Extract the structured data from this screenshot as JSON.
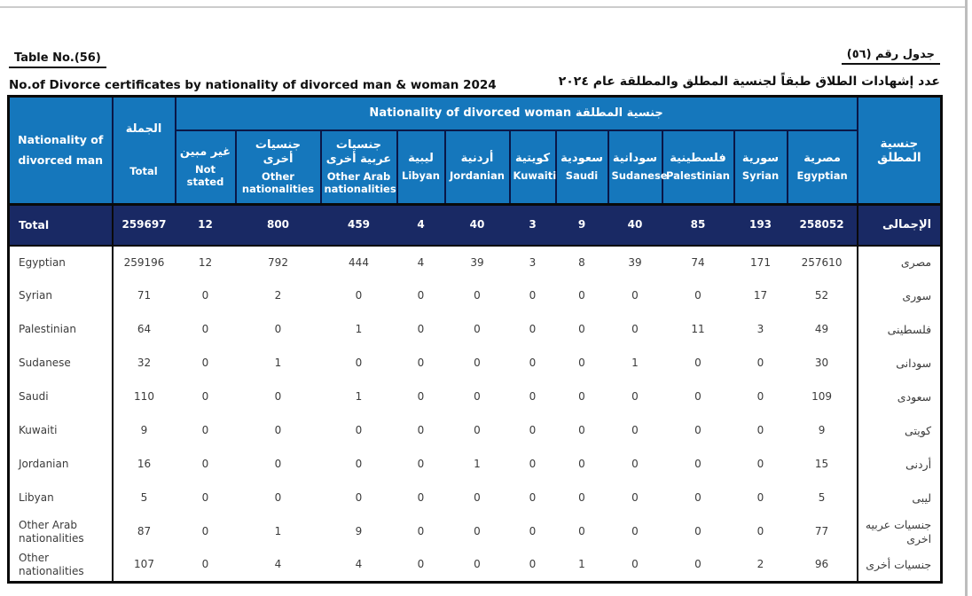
{
  "page": {
    "table_no_en": "Table  No.(56)",
    "table_no_ar": "جدول رقم (٥٦)",
    "title_en": "No.of  Divorce certificates by nationality of divorced man & woman 2024",
    "title_ar": "عدد إشهادات الطلاق طبقاً لجنسية المطلق والمطلقة عام  ٢٠٢٤"
  },
  "colors": {
    "header_blue": "#1577BC",
    "total_navy": "#192964",
    "border_black": "#0a0a0a",
    "body_text": "#3b3b3b"
  },
  "table": {
    "man_header_en": "Nationality of divorced man",
    "total_header_ar": "الجملة",
    "total_header_en": "Total",
    "woman_group_header": "Nationality of divorced  woman جنسية المطلقة",
    "man_header_ar": "جنسية المطلق",
    "columns": [
      {
        "ar": "غير مبين",
        "en": "Not stated"
      },
      {
        "ar": "جنسيات أخرى",
        "en": "Other nationalities"
      },
      {
        "ar": "جنسيات عربية أخرى",
        "en": "Other Arab nationalities"
      },
      {
        "ar": "ليبية",
        "en": "Libyan"
      },
      {
        "ar": "أردنية",
        "en": "Jordanian"
      },
      {
        "ar": "كويتية",
        "en": "Kuwaiti"
      },
      {
        "ar": "سعودية",
        "en": "Saudi"
      },
      {
        "ar": "سودانية",
        "en": "Sudanese"
      },
      {
        "ar": "فلسطينية",
        "en": "Palestinian"
      },
      {
        "ar": "سورية",
        "en": "Syrian"
      },
      {
        "ar": "مصرية",
        "en": "Egyptian"
      }
    ],
    "total_row": {
      "label_en": "Total",
      "label_ar": "الإجمالى",
      "total": "259697",
      "values": [
        "12",
        "800",
        "459",
        "4",
        "40",
        "3",
        "9",
        "40",
        "85",
        "193",
        "258052"
      ]
    },
    "rows": [
      {
        "label_en": "Egyptian",
        "label_ar": "مصرى",
        "total": "259196",
        "values": [
          "12",
          "792",
          "444",
          "4",
          "39",
          "3",
          "8",
          "39",
          "74",
          "171",
          "257610"
        ]
      },
      {
        "label_en": "Syrian",
        "label_ar": "سورى",
        "total": "71",
        "values": [
          "0",
          "2",
          "0",
          "0",
          "0",
          "0",
          "0",
          "0",
          "0",
          "17",
          "52"
        ]
      },
      {
        "label_en": "Palestinian",
        "label_ar": "فلسطينى",
        "total": "64",
        "values": [
          "0",
          "0",
          "1",
          "0",
          "0",
          "0",
          "0",
          "0",
          "11",
          "3",
          "49"
        ]
      },
      {
        "label_en": "Sudanese",
        "label_ar": "سودانى",
        "total": "32",
        "values": [
          "0",
          "1",
          "0",
          "0",
          "0",
          "0",
          "0",
          "1",
          "0",
          "0",
          "30"
        ]
      },
      {
        "label_en": "Saudi",
        "label_ar": "سعودى",
        "total": "110",
        "values": [
          "0",
          "0",
          "1",
          "0",
          "0",
          "0",
          "0",
          "0",
          "0",
          "0",
          "109"
        ]
      },
      {
        "label_en": "Kuwaiti",
        "label_ar": "كويتى",
        "total": "9",
        "values": [
          "0",
          "0",
          "0",
          "0",
          "0",
          "0",
          "0",
          "0",
          "0",
          "0",
          "9"
        ]
      },
      {
        "label_en": "Jordanian",
        "label_ar": "أردنى",
        "total": "16",
        "values": [
          "0",
          "0",
          "0",
          "0",
          "1",
          "0",
          "0",
          "0",
          "0",
          "0",
          "15"
        ]
      },
      {
        "label_en": "Libyan",
        "label_ar": "ليبى",
        "total": "5",
        "values": [
          "0",
          "0",
          "0",
          "0",
          "0",
          "0",
          "0",
          "0",
          "0",
          "0",
          "5"
        ]
      },
      {
        "label_en": "Other Arab nationalities",
        "label_ar": "جنسيات عربيه اخرى",
        "total": "87",
        "values": [
          "0",
          "1",
          "9",
          "0",
          "0",
          "0",
          "0",
          "0",
          "0",
          "0",
          "77"
        ]
      },
      {
        "label_en": "Other nationalities",
        "label_ar": "جنسيات أخرى",
        "total": "107",
        "values": [
          "0",
          "4",
          "4",
          "0",
          "0",
          "0",
          "1",
          "0",
          "0",
          "2",
          "96"
        ]
      }
    ]
  }
}
